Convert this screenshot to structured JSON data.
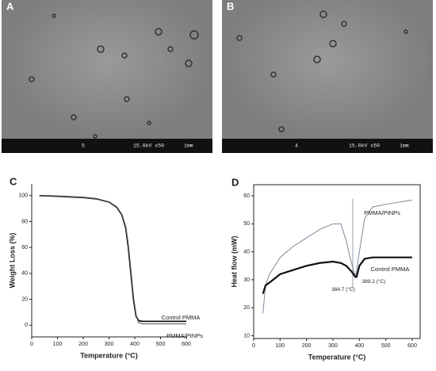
{
  "images": [
    {
      "label": "A",
      "bar": [
        "5",
        "15.0kV x50",
        "1mm"
      ]
    },
    {
      "label": "B",
      "bar": [
        "4",
        "15.0kV x50",
        "1mm"
      ]
    }
  ],
  "chart_data": [
    {
      "type": "line",
      "panel": "C",
      "ylabel": "Weight Loss (%)",
      "xlabel": "Temperature (°C)",
      "xlim": [
        0,
        600
      ],
      "ylim": [
        -9,
        109
      ],
      "xticks": [
        0,
        100,
        200,
        300,
        400,
        500,
        600
      ],
      "yticks": [
        0,
        20,
        40,
        60,
        80,
        100
      ],
      "x": [
        30,
        100,
        200,
        250,
        300,
        330,
        350,
        365,
        375,
        385,
        395,
        405,
        415,
        430,
        500,
        600
      ],
      "series": [
        {
          "name": "Control PMMA",
          "color": "#111111",
          "values": [
            100,
            99.5,
            98.5,
            97.5,
            95,
            91,
            85,
            75,
            60,
            40,
            20,
            7,
            3.5,
            3,
            3,
            3
          ]
        },
        {
          "name": "PMMA/PtNPs",
          "color": "#555555",
          "values": [
            100,
            99.5,
            98.5,
            97.5,
            95,
            91,
            85,
            76,
            62,
            42,
            22,
            8,
            2,
            1,
            1,
            1
          ]
        }
      ]
    },
    {
      "type": "line",
      "panel": "D",
      "ylabel": "Heat flow (mW)",
      "xlabel": "Temperature (°C)",
      "xlim": [
        0,
        630
      ],
      "ylim": [
        9,
        64
      ],
      "xticks": [
        0,
        100,
        200,
        300,
        400,
        500,
        600
      ],
      "yticks": [
        10,
        20,
        30,
        40,
        50,
        60
      ],
      "x": [
        35,
        45,
        60,
        100,
        150,
        200,
        250,
        300,
        330,
        350,
        370,
        384.7,
        389.2,
        400,
        420,
        450,
        500,
        600
      ],
      "series": [
        {
          "name": "PMMA/PtNPs",
          "color": "#7a8a99",
          "values": [
            18,
            28,
            32,
            38,
            42,
            45,
            48,
            50,
            50,
            44,
            36,
            31,
            33,
            40,
            52,
            56,
            57,
            58.5
          ]
        },
        {
          "name": "Control PMMA",
          "color": "#111111",
          "values": [
            25,
            28,
            29,
            32,
            33.5,
            35,
            36,
            36.5,
            36,
            35,
            33,
            31,
            31,
            35,
            37.5,
            38,
            38,
            38
          ]
        }
      ],
      "annotations": [
        "384.7 (°C)",
        "389.2 (°C)"
      ]
    }
  ]
}
